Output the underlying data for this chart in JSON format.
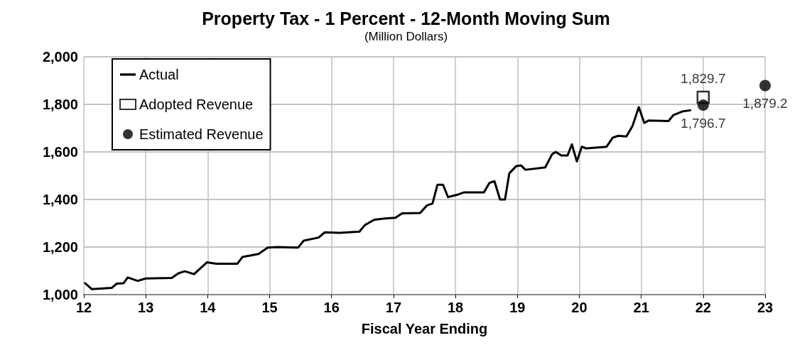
{
  "chart_data": {
    "type": "line",
    "title": "Property Tax - 1 Percent - 12-Month Moving Sum",
    "subtitle": "(Million Dollars)",
    "xlabel": "Fiscal Year Ending",
    "xlim": [
      12,
      23
    ],
    "xticks": [
      12,
      13,
      14,
      15,
      16,
      17,
      18,
      19,
      20,
      21,
      22,
      23
    ],
    "ylim": [
      1000,
      2000
    ],
    "yticks": [
      {
        "value": 1000,
        "label": "1,000"
      },
      {
        "value": 1200,
        "label": "1,200"
      },
      {
        "value": 1400,
        "label": "1,400"
      },
      {
        "value": 1600,
        "label": "1,600"
      },
      {
        "value": 1800,
        "label": "1,800"
      },
      {
        "value": 2000,
        "label": "2,000"
      }
    ],
    "grid": true,
    "legend": "top left",
    "marker": "none",
    "series": [
      {
        "name": "Actual",
        "color": "#000000",
        "x": [
          12.02,
          12.13,
          12.45,
          12.53,
          12.64,
          12.71,
          12.87,
          13.0,
          13.42,
          13.53,
          13.63,
          13.78,
          13.88,
          13.99,
          14.14,
          14.48,
          14.56,
          14.82,
          14.97,
          15.12,
          15.46,
          15.55,
          15.79,
          15.89,
          16.13,
          16.45,
          16.54,
          16.69,
          16.86,
          17.03,
          17.14,
          17.43,
          17.54,
          17.63,
          17.71,
          17.8,
          17.88,
          18.03,
          18.14,
          18.46,
          18.55,
          18.63,
          18.72,
          18.8,
          18.87,
          18.98,
          19.06,
          19.13,
          19.45,
          19.56,
          19.62,
          19.71,
          19.81,
          19.88,
          19.96,
          20.04,
          20.11,
          20.44,
          20.54,
          20.63,
          20.76,
          20.86,
          20.96,
          21.05,
          21.12,
          21.44,
          21.52,
          21.66,
          21.79
        ],
        "values": [
          1048,
          1023,
          1028,
          1046,
          1048,
          1072,
          1058,
          1068,
          1070,
          1090,
          1098,
          1086,
          1110,
          1136,
          1130,
          1130,
          1158,
          1171,
          1198,
          1200,
          1198,
          1227,
          1240,
          1262,
          1260,
          1265,
          1293,
          1315,
          1320,
          1323,
          1342,
          1343,
          1375,
          1383,
          1462,
          1462,
          1410,
          1420,
          1430,
          1430,
          1470,
          1477,
          1400,
          1400,
          1510,
          1540,
          1543,
          1525,
          1535,
          1590,
          1600,
          1585,
          1585,
          1632,
          1560,
          1622,
          1615,
          1622,
          1660,
          1668,
          1665,
          1710,
          1788,
          1722,
          1732,
          1730,
          1755,
          1770,
          1775
        ]
      },
      {
        "name": "Adopted Revenue",
        "type": "scatter",
        "marker": "square",
        "color": "#000000",
        "x": [
          22
        ],
        "values": [
          1829.7
        ],
        "value_labels": [
          "1,829.7"
        ]
      },
      {
        "name": "Estimated Revenue",
        "type": "scatter",
        "marker": "circle",
        "color": "#000000",
        "x": [
          22,
          23
        ],
        "values": [
          1796.7,
          1879.2
        ],
        "value_labels": [
          "1,796.7",
          "1,879.2"
        ]
      }
    ]
  }
}
